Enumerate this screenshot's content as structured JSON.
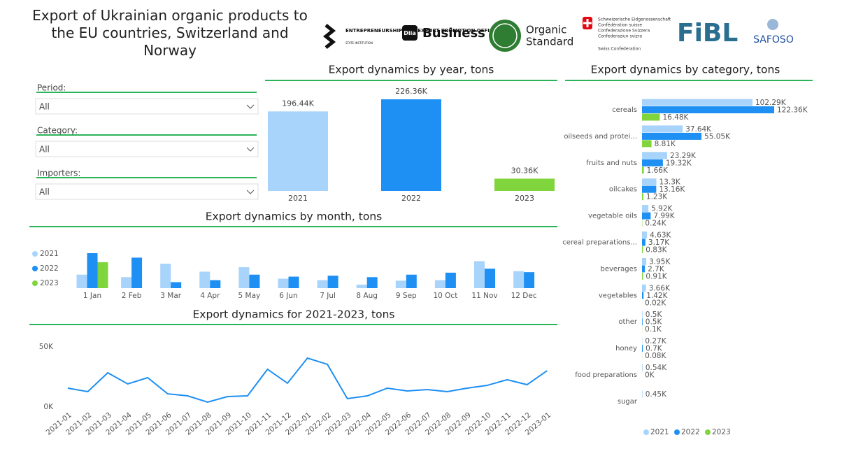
{
  "header": {
    "title": "Export of Ukrainian organic products to the EU countries, Switzerland and Norway"
  },
  "logos": [
    "ENTREPRENEURSHIP AND EXPORT PROMOTION OFFICE",
    "STATE INSTITUTION",
    "Diia",
    "Business",
    "Organic",
    "Standard",
    "Schweizerische Eidgenossenschaft",
    "Confédération suisse",
    "Confederazione Svizzera",
    "Confederaziun svizra",
    "Swiss Confederation",
    "FiBL",
    "SAFOSO"
  ],
  "filters": [
    {
      "label": "Period:",
      "value": "All"
    },
    {
      "label": "Category:",
      "value": "All"
    },
    {
      "label": "Importers:",
      "value": "All"
    }
  ],
  "chart_data": [
    {
      "type": "bar",
      "title": "Export dynamics by year, tons",
      "categories": [
        "2021",
        "2022",
        "2023"
      ],
      "values": [
        196440,
        226360,
        30360
      ],
      "value_labels": [
        "196.44K",
        "226.36K",
        "30.36K"
      ],
      "colors": [
        "#a8d4fb",
        "#1e8ff3",
        "#80d43c"
      ]
    },
    {
      "type": "grouped_bar",
      "title": "Export dynamics by month, tons",
      "categories": [
        "1 Jan",
        "2 Feb",
        "3 Mar",
        "4 Apr",
        "5 May",
        "6 Jun",
        "7 Jul",
        "8 Aug",
        "9 Sep",
        "10 Oct",
        "11 Nov",
        "12 Dec"
      ],
      "series": [
        {
          "name": "2021",
          "color": "#a8d4fb",
          "values": [
            15700,
            12800,
            28500,
            19200,
            24400,
            11000,
            9300,
            4100,
            8700,
            9300,
            31400,
            19800
          ]
        },
        {
          "name": "2022",
          "color": "#1e8ff3",
          "values": [
            40700,
            35500,
            7000,
            9300,
            15700,
            13400,
            14500,
            12800,
            15700,
            18000,
            22700,
            18600
          ]
        },
        {
          "name": "2023",
          "color": "#80d43c",
          "values": [
            30200,
            null,
            null,
            null,
            null,
            null,
            null,
            null,
            null,
            null,
            null,
            null
          ]
        }
      ]
    },
    {
      "type": "line",
      "title": "Export dynamics for 2021-2023, tons",
      "color": "#1e8ff3",
      "x": [
        "2021-01",
        "2021-02",
        "2021-03",
        "2021-04",
        "2021-05",
        "2021-06",
        "2021-07",
        "2021-08",
        "2021-09",
        "2021-10",
        "2021-11",
        "2021-12",
        "2022-01",
        "2022-02",
        "2022-03",
        "2022-04",
        "2022-05",
        "2022-06",
        "2022-07",
        "2022-08",
        "2022-09",
        "2022-10",
        "2022-11",
        "2022-12",
        "2023-01"
      ],
      "values": [
        15700,
        12800,
        28500,
        19200,
        24400,
        11000,
        9300,
        4100,
        8700,
        9300,
        31400,
        19800,
        40700,
        35500,
        7000,
        9300,
        15700,
        13400,
        14500,
        12800,
        15700,
        18000,
        22700,
        18600,
        30200
      ],
      "ylim": [
        0,
        50000
      ],
      "yticks": [
        {
          "value": 0,
          "label": "0K"
        },
        {
          "value": 50000,
          "label": "50K"
        }
      ]
    },
    {
      "type": "hbar_grouped",
      "title": "Export dynamics by category, tons",
      "categories": [
        "cereals",
        "oilseeds and protei...",
        "fruits and nuts",
        "oilcakes",
        "vegetable oils",
        "cereal preparations...",
        "beverages",
        "vegetables",
        "other",
        "honey",
        "food preparations",
        "sugar"
      ],
      "series": [
        {
          "name": "2021",
          "color": "#a8d4fb",
          "values": [
            102290,
            37640,
            23290,
            13300,
            5920,
            4630,
            3950,
            3660,
            500,
            270,
            540,
            450
          ],
          "value_labels": [
            "102.29K",
            "37.64K",
            "23.29K",
            "13.3K",
            "5.92K",
            "4.63K",
            "3.95K",
            "3.66K",
            "0.5K",
            "0.27K",
            "0.54K",
            "0.45K"
          ]
        },
        {
          "name": "2022",
          "color": "#1e8ff3",
          "values": [
            122360,
            55050,
            19320,
            13160,
            7990,
            3170,
            2700,
            1420,
            500,
            700,
            0,
            null
          ],
          "value_labels": [
            "122.36K",
            "55.05K",
            "19.32K",
            "13.16K",
            "7.99K",
            "3.17K",
            "2.7K",
            "1.42K",
            "0.5K",
            "0.7K",
            "0K",
            null
          ]
        },
        {
          "name": "2023",
          "color": "#80d43c",
          "values": [
            16480,
            8810,
            1660,
            1230,
            240,
            830,
            910,
            20,
            100,
            80,
            null,
            null
          ],
          "value_labels": [
            "16.48K",
            "8.81K",
            "1.66K",
            "1.23K",
            "0.24K",
            "0.83K",
            "0.91K",
            "0.02K",
            "0.1K",
            "0.08K",
            null,
            null
          ]
        }
      ]
    }
  ]
}
